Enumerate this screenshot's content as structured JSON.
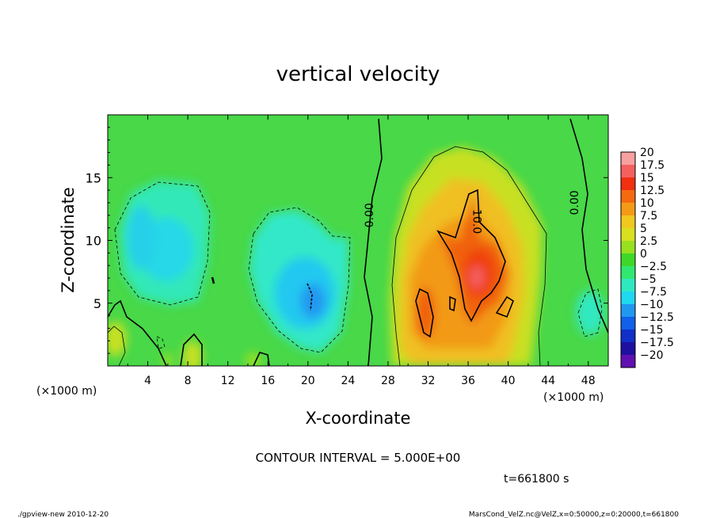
{
  "chart_data": {
    "type": "heatmap",
    "title": "vertical velocity",
    "xlabel": "X-coordinate",
    "ylabel": "Z-coordinate",
    "x_unit_left": "(×1000 m)",
    "x_unit_right": "(×1000 m)",
    "xlim": [
      0,
      50
    ],
    "ylim": [
      0,
      20
    ],
    "x_ticks": [
      4,
      8,
      12,
      16,
      20,
      24,
      28,
      32,
      36,
      40,
      44,
      48
    ],
    "y_ticks": [
      5,
      10,
      15
    ],
    "contour_interval_text": "CONTOUR INTERVAL = 5.000E+00",
    "time_text": "t=661800 s",
    "contour_labels": [
      {
        "text": "0.00",
        "x": 26.5,
        "z": 12
      },
      {
        "text": "10.0",
        "x": 36.5,
        "z": 11.5
      },
      {
        "text": "0.00",
        "x": 47,
        "z": 13
      }
    ],
    "colorbar": {
      "labels": [
        "20",
        "17.5",
        "15",
        "12.5",
        "10",
        "7.5",
        "5",
        "2.5",
        "0",
        "−2.5",
        "−5",
        "−7.5",
        "−10",
        "−12.5",
        "−15",
        "−17.5",
        "−20"
      ],
      "colors": [
        "#f7a0a0",
        "#f46060",
        "#f03010",
        "#f46a10",
        "#f59a18",
        "#f0c820",
        "#d8e020",
        "#98e020",
        "#40d828",
        "#30e870",
        "#30e8c0",
        "#20d8f0",
        "#2098f0",
        "#1060e8",
        "#1030c8",
        "#2010a0",
        "#6010b0"
      ]
    },
    "features": [
      {
        "kind": "updraft",
        "x": 36,
        "z": 8,
        "peak": 17.5
      },
      {
        "kind": "updraft",
        "x": 31,
        "z": 5,
        "peak": 12
      },
      {
        "kind": "downdraft",
        "x": 20,
        "z": 6,
        "peak": -10
      },
      {
        "kind": "downdraft",
        "x": 6,
        "z": 10,
        "peak": -6
      },
      {
        "kind": "downdraft",
        "x": 47,
        "z": 4.5,
        "peak": -6
      }
    ]
  },
  "footer": {
    "left": "./gpview-new  2010-12-20",
    "right": "MarsCond_VelZ.nc@VelZ,x=0:50000,z=0:20000,t=661800"
  }
}
